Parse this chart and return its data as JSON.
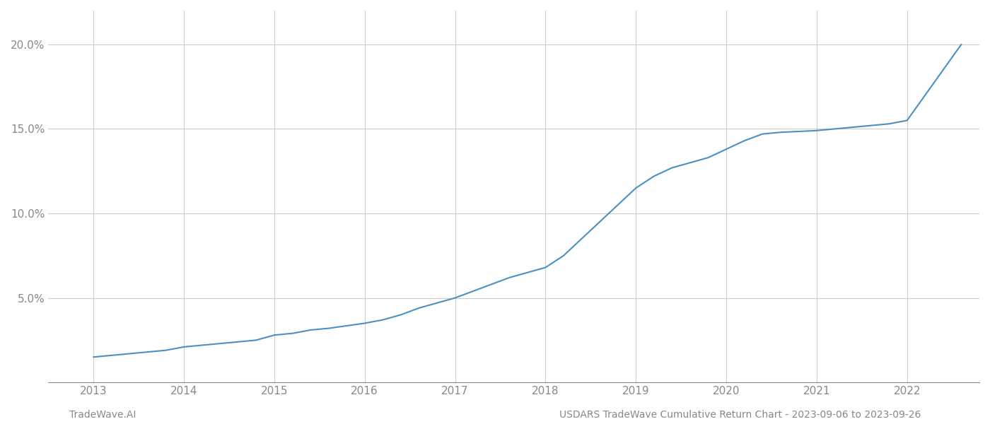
{
  "title": "",
  "xlabel": "",
  "ylabel": "",
  "footer_left": "TradeWave.AI",
  "footer_right": "USDARS TradeWave Cumulative Return Chart - 2023-09-06 to 2023-09-26",
  "line_color": "#4a90c4",
  "background_color": "#ffffff",
  "grid_color": "#cccccc",
  "x_years": [
    2013,
    2014,
    2015,
    2016,
    2017,
    2018,
    2019,
    2020,
    2021,
    2022
  ],
  "data_x": [
    2013.0,
    2013.2,
    2013.4,
    2013.6,
    2013.8,
    2014.0,
    2014.2,
    2014.4,
    2014.6,
    2014.8,
    2015.0,
    2015.2,
    2015.4,
    2015.6,
    2015.8,
    2016.0,
    2016.2,
    2016.4,
    2016.6,
    2016.8,
    2017.0,
    2017.2,
    2017.4,
    2017.6,
    2017.8,
    2018.0,
    2018.2,
    2018.4,
    2018.6,
    2018.8,
    2019.0,
    2019.2,
    2019.4,
    2019.6,
    2019.8,
    2020.0,
    2020.2,
    2020.4,
    2020.6,
    2020.8,
    2021.0,
    2021.2,
    2021.4,
    2021.6,
    2021.8,
    2022.0,
    2022.2,
    2022.4,
    2022.6
  ],
  "data_y": [
    1.5,
    1.6,
    1.7,
    1.8,
    1.9,
    2.1,
    2.2,
    2.3,
    2.4,
    2.5,
    2.8,
    2.9,
    3.1,
    3.2,
    3.35,
    3.5,
    3.7,
    4.0,
    4.4,
    4.7,
    5.0,
    5.4,
    5.8,
    6.2,
    6.5,
    6.8,
    7.5,
    8.5,
    9.5,
    10.5,
    11.5,
    12.2,
    12.7,
    13.0,
    13.3,
    13.8,
    14.3,
    14.7,
    14.8,
    14.85,
    14.9,
    15.0,
    15.1,
    15.2,
    15.3,
    15.5,
    17.0,
    18.5,
    20.0
  ],
  "ylim": [
    0,
    22
  ],
  "yticks": [
    5.0,
    10.0,
    15.0,
    20.0
  ],
  "ytick_labels": [
    "5.0%",
    "10.0%",
    "15.0%",
    "20.0%"
  ],
  "xlim": [
    2012.5,
    2022.8
  ]
}
